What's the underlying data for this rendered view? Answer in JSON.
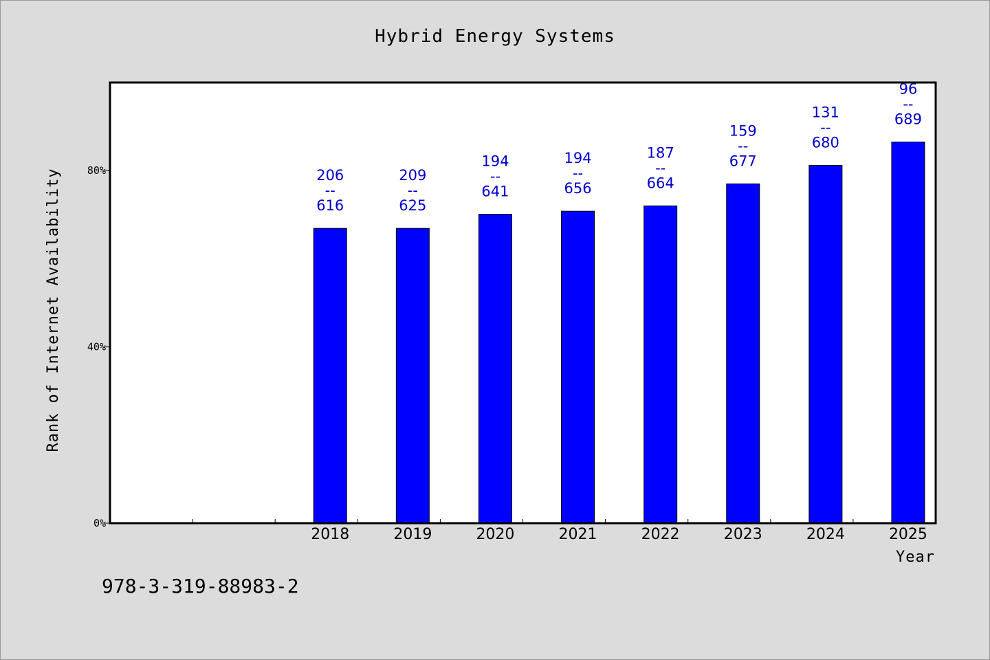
{
  "chart_data": {
    "type": "bar",
    "title": "Hybrid Energy Systems",
    "xlabel": "Year",
    "ylabel": "Rank of Internet Availability",
    "categories": [
      "",
      "",
      "2018",
      "2019",
      "2020",
      "2021",
      "2022",
      "2023",
      "2024",
      "2025"
    ],
    "series": [
      {
        "values": [
          null,
          null,
          0.669,
          0.669,
          0.701,
          0.708,
          0.72,
          0.77,
          0.812,
          0.865
        ],
        "labels": [
          null,
          null,
          [
            "206",
            "--",
            "616"
          ],
          [
            "209",
            "--",
            "625"
          ],
          [
            "194",
            "--",
            "641"
          ],
          [
            "194",
            "--",
            "656"
          ],
          [
            "187",
            "--",
            "664"
          ],
          [
            "159",
            "--",
            "677"
          ],
          [
            "131",
            "--",
            "680"
          ],
          [
            "96",
            "--",
            "689"
          ]
        ]
      }
    ],
    "ylim": [
      0,
      1.0
    ],
    "yticks": [
      0,
      0.4,
      0.8
    ],
    "ytick_labels": [
      "0%",
      "40%",
      "80%"
    ],
    "grid": false,
    "bar_color": "#0000ff",
    "label_color": "#0000cc"
  },
  "footer": {
    "code": "978-3-319-88983-2"
  }
}
